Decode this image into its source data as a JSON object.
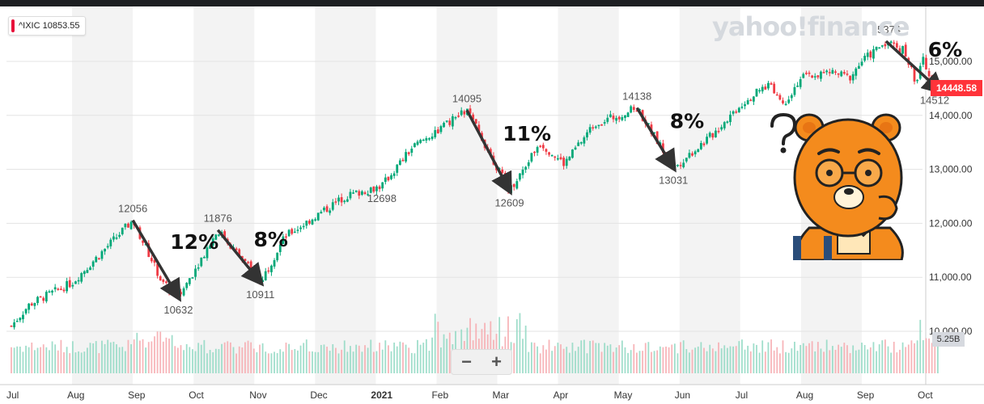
{
  "ticker_badge": "^IXIC 10853.55",
  "watermark": "yahoo!finance",
  "price_tag": "14448.58",
  "volume_tag": "5.25B",
  "zoom": {
    "minus": "−",
    "plus": "+"
  },
  "colors": {
    "up": "#00a878",
    "down": "#ef3b45",
    "line_annot": "#333333",
    "price_tag_bg": "#ff333a"
  },
  "chart_data": {
    "type": "candlestick",
    "title": "",
    "xlabel": "",
    "ylabel": "",
    "ylim": [
      10000,
      15800
    ],
    "y_ticks": [
      "15,000.00",
      "14,000.00",
      "13,000.00",
      "12,000.00",
      "11,000.00",
      "10,000.00"
    ],
    "y_tick_values": [
      15000,
      14000,
      13000,
      12000,
      11000,
      10000
    ],
    "x_ticks": [
      "Jul",
      "Aug",
      "Sep",
      "Oct",
      "Nov",
      "Dec",
      "2021",
      "Feb",
      "Mar",
      "Apr",
      "May",
      "Jun",
      "Jul",
      "Aug",
      "Sep",
      "Oct"
    ],
    "price_keypoints": [
      {
        "t": 0,
        "v": 10100
      },
      {
        "t": 0.3,
        "v": 10500
      },
      {
        "t": 1,
        "v": 10900
      },
      {
        "t": 2,
        "v": 12056
      },
      {
        "t": 2.5,
        "v": 10870
      },
      {
        "t": 2.75,
        "v": 10632
      },
      {
        "t": 3.4,
        "v": 11876
      },
      {
        "t": 3.9,
        "v": 11200
      },
      {
        "t": 4.1,
        "v": 10911
      },
      {
        "t": 4.5,
        "v": 11750
      },
      {
        "t": 5.5,
        "v": 12500
      },
      {
        "t": 6.1,
        "v": 12698
      },
      {
        "t": 6.6,
        "v": 13400
      },
      {
        "t": 7.5,
        "v": 14095
      },
      {
        "t": 8.2,
        "v": 12609
      },
      {
        "t": 8.7,
        "v": 13500
      },
      {
        "t": 9.1,
        "v": 13100
      },
      {
        "t": 9.6,
        "v": 13850
      },
      {
        "t": 10.0,
        "v": 14000
      },
      {
        "t": 10.3,
        "v": 14138
      },
      {
        "t": 10.9,
        "v": 13031
      },
      {
        "t": 11.5,
        "v": 13600
      },
      {
        "t": 12.0,
        "v": 14200
      },
      {
        "t": 12.5,
        "v": 14600
      },
      {
        "t": 12.7,
        "v": 14200
      },
      {
        "t": 13.0,
        "v": 14700
      },
      {
        "t": 13.5,
        "v": 14800
      },
      {
        "t": 13.8,
        "v": 14700
      },
      {
        "t": 14.0,
        "v": 15000
      },
      {
        "t": 14.4,
        "v": 15374
      },
      {
        "t": 14.7,
        "v": 15200
      },
      {
        "t": 14.9,
        "v": 14600
      },
      {
        "t": 15.0,
        "v": 15100
      },
      {
        "t": 15.2,
        "v": 14512
      },
      {
        "t": 15.3,
        "v": 14448.58
      }
    ],
    "annotations": [
      {
        "label": "12056",
        "t": 2.0,
        "v": 12056,
        "pos": "above"
      },
      {
        "label": "10632",
        "t": 2.75,
        "v": 10632,
        "pos": "below"
      },
      {
        "label": "11876",
        "t": 3.4,
        "v": 11876,
        "pos": "above"
      },
      {
        "label": "10911",
        "t": 4.1,
        "v": 10911,
        "pos": "below"
      },
      {
        "label": "12698",
        "t": 6.1,
        "v": 12698,
        "pos": "below"
      },
      {
        "label": "14095",
        "t": 7.5,
        "v": 14095,
        "pos": "above"
      },
      {
        "label": "12609",
        "t": 8.2,
        "v": 12609,
        "pos": "below"
      },
      {
        "label": "14138",
        "t": 10.3,
        "v": 14138,
        "pos": "above"
      },
      {
        "label": "13031",
        "t": 10.9,
        "v": 13031,
        "pos": "below"
      },
      {
        "label": "15374",
        "t": 14.4,
        "v": 15374,
        "pos": "above"
      },
      {
        "label": "14512",
        "t": 15.2,
        "v": 14512,
        "pos": "below"
      }
    ],
    "drawdowns": [
      {
        "label": "12%",
        "from": {
          "t": 2.0,
          "v": 12056
        },
        "to": {
          "t": 2.75,
          "v": 10632
        }
      },
      {
        "label": "8%",
        "from": {
          "t": 3.4,
          "v": 11876
        },
        "to": {
          "t": 4.1,
          "v": 10911
        }
      },
      {
        "label": "11%",
        "from": {
          "t": 7.5,
          "v": 14095
        },
        "to": {
          "t": 8.2,
          "v": 12609
        }
      },
      {
        "label": "8%",
        "from": {
          "t": 10.3,
          "v": 14138
        },
        "to": {
          "t": 10.9,
          "v": 13031
        }
      },
      {
        "label": "6%",
        "from": {
          "t": 14.4,
          "v": 15374
        },
        "to": {
          "t": 15.3,
          "v": 14448.58
        }
      }
    ],
    "grid": true,
    "legend": "none"
  }
}
